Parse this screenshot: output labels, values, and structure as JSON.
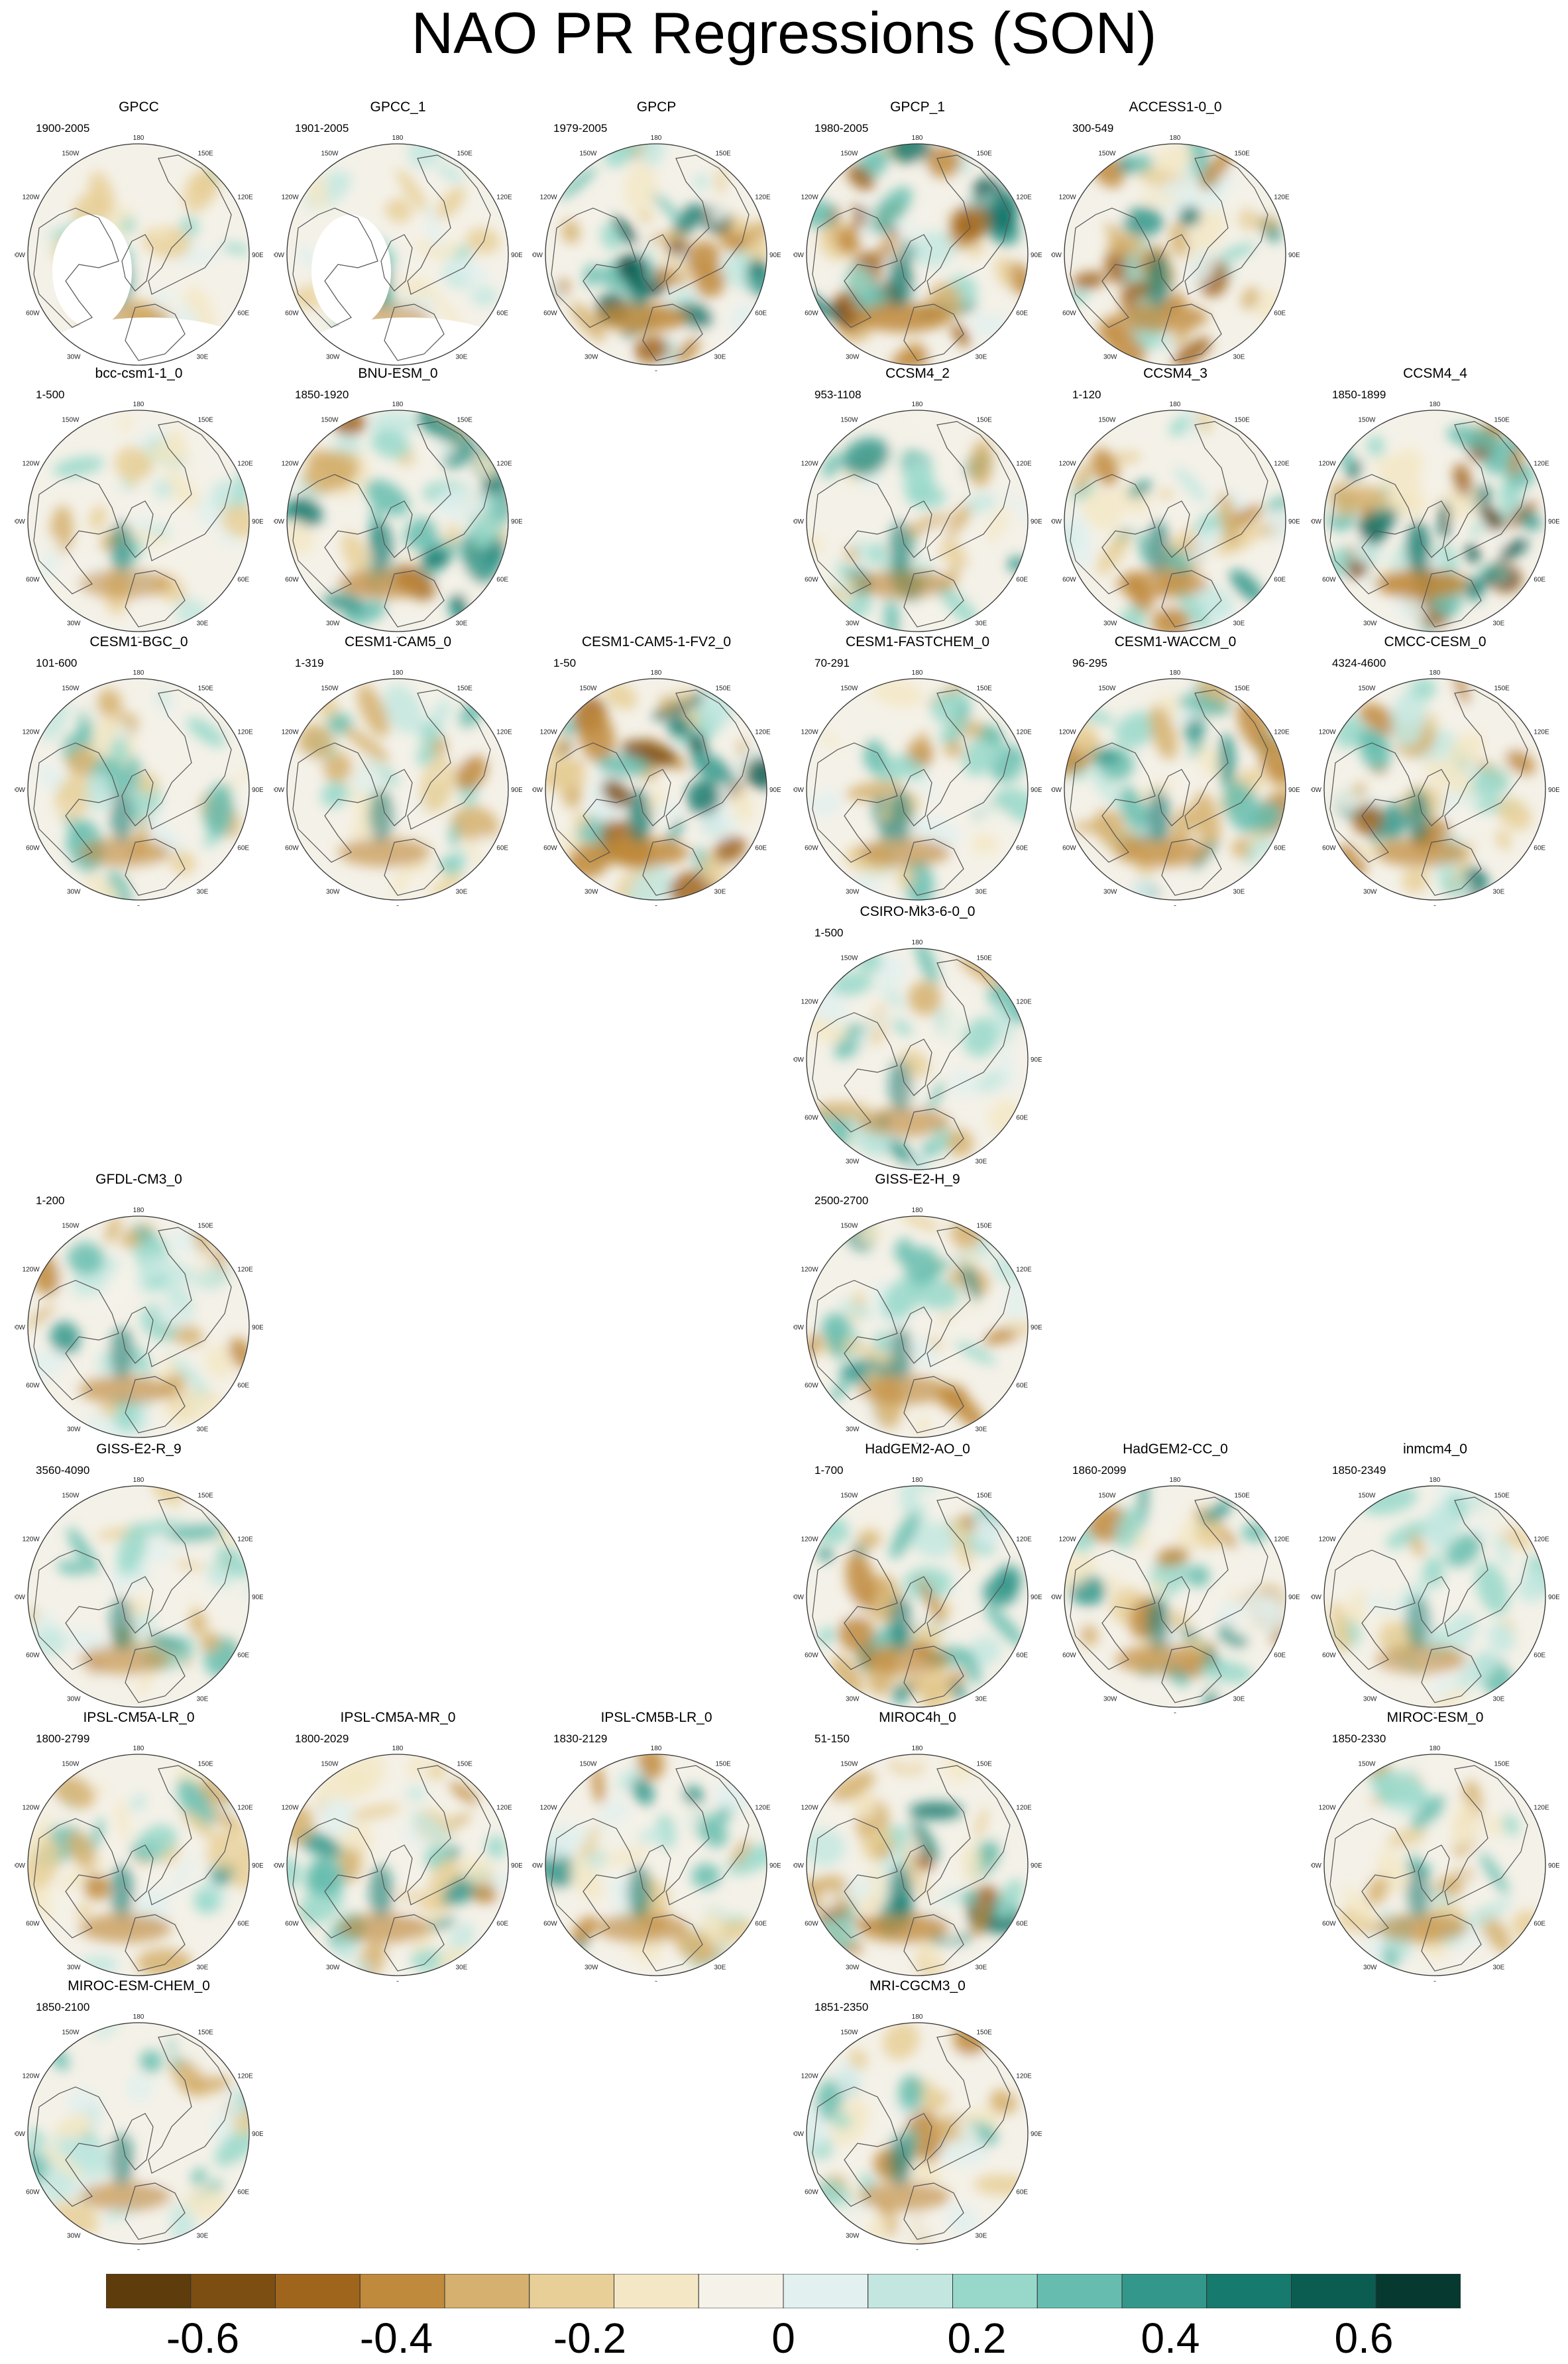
{
  "title": "NAO PR Regressions (SON)",
  "grid_labels": {
    "top": "180",
    "bottom": "0",
    "left": "90W",
    "right": "90E",
    "tl1": "150W",
    "tl2": "120W",
    "tr1": "150E",
    "tr2": "120E",
    "bl1": "60W",
    "bl2": "30W",
    "br1": "60E",
    "br2": "30E"
  },
  "colors": {
    "ocean_background": "#f4f1e8",
    "coast_line": "#555555",
    "scale": [
      "#5e3c0c",
      "#7d4e11",
      "#a0651c",
      "#c08a3c",
      "#d5b06e",
      "#e8cf97",
      "#f3e7c6",
      "#f5f2e9",
      "#e2f0ef",
      "#c3e7e0",
      "#97d8ca",
      "#66bdaf",
      "#34978b",
      "#167a6e",
      "#0b5d52",
      "#06392f"
    ]
  },
  "colorbar": {
    "labels": [
      "-0.6",
      "-0.4",
      "-0.2",
      "0",
      "0.2",
      "0.4",
      "0.6"
    ],
    "boundaries": [
      -0.7,
      0.7
    ],
    "bins": 16
  },
  "panels": [
    {
      "name": "GPCC",
      "years": "1900-2005",
      "row": 0,
      "col": 0,
      "masked": true,
      "strength": 0.4
    },
    {
      "name": "GPCC_1",
      "years": "1901-2005",
      "row": 0,
      "col": 1,
      "masked": true,
      "strength": 0.4
    },
    {
      "name": "GPCP",
      "years": "1979-2005",
      "row": 0,
      "col": 2,
      "masked": false,
      "strength": 0.95
    },
    {
      "name": "GPCP_1",
      "years": "1980-2005",
      "row": 0,
      "col": 3,
      "masked": false,
      "strength": 0.95
    },
    {
      "name": "ACCESS1-0_0",
      "years": "300-549",
      "row": 0,
      "col": 4,
      "masked": false,
      "strength": 0.8
    },
    {
      "name": "bcc-csm1-1_0",
      "years": "1-500",
      "row": 1,
      "col": 0,
      "masked": false,
      "strength": 0.45
    },
    {
      "name": "BNU-ESM_0",
      "years": "1850-1920",
      "row": 1,
      "col": 1,
      "masked": false,
      "strength": 0.75
    },
    {
      "name": "CCSM4_2",
      "years": "953-1108",
      "row": 1,
      "col": 3,
      "masked": false,
      "strength": 0.6
    },
    {
      "name": "CCSM4_3",
      "years": "1-120",
      "row": 1,
      "col": 4,
      "masked": false,
      "strength": 0.65
    },
    {
      "name": "CCSM4_4",
      "years": "1850-1899",
      "row": 1,
      "col": 5,
      "masked": false,
      "strength": 1.0
    },
    {
      "name": "CESM1-BGC_0",
      "years": "101-600",
      "row": 2,
      "col": 0,
      "masked": false,
      "strength": 0.55
    },
    {
      "name": "CESM1-CAM5_0",
      "years": "1-319",
      "row": 2,
      "col": 1,
      "masked": false,
      "strength": 0.55
    },
    {
      "name": "CESM1-CAM5-1-FV2_0",
      "years": "1-50",
      "row": 2,
      "col": 2,
      "masked": false,
      "strength": 0.9
    },
    {
      "name": "CESM1-FASTCHEM_0",
      "years": "70-291",
      "row": 2,
      "col": 3,
      "masked": false,
      "strength": 0.6
    },
    {
      "name": "CESM1-WACCM_0",
      "years": "96-295",
      "row": 2,
      "col": 4,
      "masked": false,
      "strength": 0.7
    },
    {
      "name": "CMCC-CESM_0",
      "years": "4324-4600",
      "row": 2,
      "col": 5,
      "masked": false,
      "strength": 0.7
    },
    {
      "name": "CSIRO-Mk3-6-0_0",
      "years": "1-500",
      "row": 3,
      "col": 3,
      "masked": false,
      "strength": 0.55
    },
    {
      "name": "GFDL-CM3_0",
      "years": "1-200",
      "row": 4,
      "col": 0,
      "masked": false,
      "strength": 0.6
    },
    {
      "name": "GISS-E2-H_9",
      "years": "2500-2700",
      "row": 4,
      "col": 3,
      "masked": false,
      "strength": 0.6
    },
    {
      "name": "GISS-E2-R_9",
      "years": "3560-4090",
      "row": 5,
      "col": 0,
      "masked": false,
      "strength": 0.55
    },
    {
      "name": "HadGEM2-AO_0",
      "years": "1-700",
      "row": 5,
      "col": 3,
      "masked": false,
      "strength": 0.65
    },
    {
      "name": "HadGEM2-CC_0",
      "years": "1860-2099",
      "row": 5,
      "col": 4,
      "masked": false,
      "strength": 0.65
    },
    {
      "name": "inmcm4_0",
      "years": "1850-2349",
      "row": 5,
      "col": 5,
      "masked": false,
      "strength": 0.45
    },
    {
      "name": "IPSL-CM5A-LR_0",
      "years": "1800-2799",
      "row": 6,
      "col": 0,
      "masked": false,
      "strength": 0.6
    },
    {
      "name": "IPSL-CM5A-MR_0",
      "years": "1800-2029",
      "row": 6,
      "col": 1,
      "masked": false,
      "strength": 0.6
    },
    {
      "name": "IPSL-CM5B-LR_0",
      "years": "1830-2129",
      "row": 6,
      "col": 2,
      "masked": false,
      "strength": 0.6
    },
    {
      "name": "MIROC4h_0",
      "years": "51-150",
      "row": 6,
      "col": 3,
      "masked": false,
      "strength": 0.8
    },
    {
      "name": "MIROC-ESM_0",
      "years": "1850-2330",
      "row": 6,
      "col": 5,
      "masked": false,
      "strength": 0.55
    },
    {
      "name": "MIROC-ESM-CHEM_0",
      "years": "1850-2100",
      "row": 7,
      "col": 0,
      "masked": false,
      "strength": 0.55
    },
    {
      "name": "MRI-CGCM3_0",
      "years": "1851-2350",
      "row": 7,
      "col": 3,
      "masked": false,
      "strength": 0.55
    }
  ]
}
